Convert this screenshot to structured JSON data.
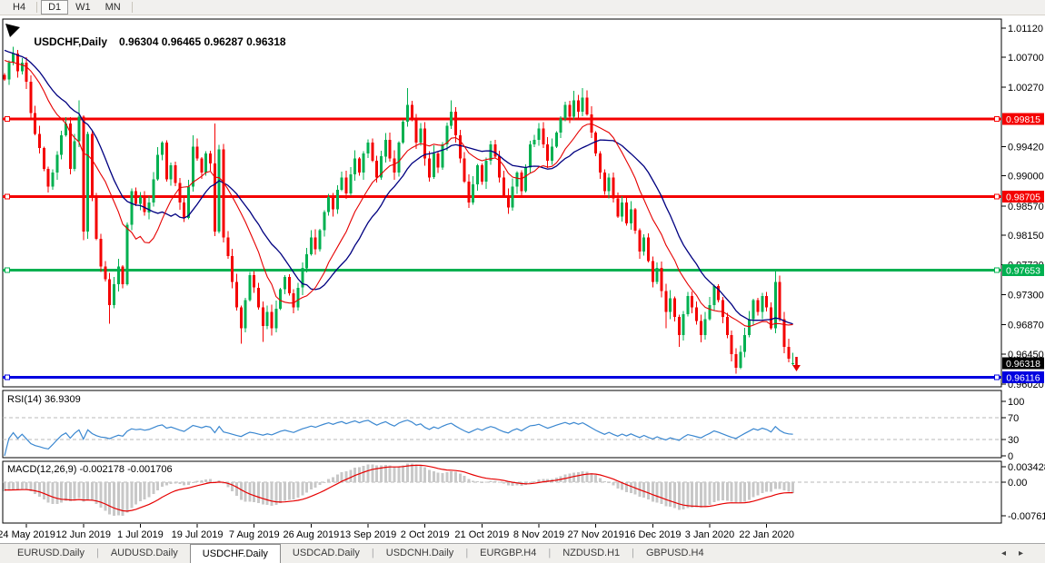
{
  "toolbar": {
    "buttons": [
      "H4",
      "D1",
      "W1",
      "MN"
    ],
    "active": "D1"
  },
  "header": {
    "symbol": "USDCHF,Daily",
    "ohlc": "0.96304 0.96465 0.96287 0.96318"
  },
  "price_axis": {
    "ticks": [
      {
        "label": "1.01120",
        "value": 1.0112
      },
      {
        "label": "1.00700",
        "value": 1.007
      },
      {
        "label": "1.00270",
        "value": 1.0027
      },
      {
        "label": "0.99420",
        "value": 0.9942
      },
      {
        "label": "0.99000",
        "value": 0.99
      },
      {
        "label": "0.98570",
        "value": 0.9857
      },
      {
        "label": "0.98150",
        "value": 0.9815
      },
      {
        "label": "0.97730",
        "value": 0.9773
      },
      {
        "label": "0.97300",
        "value": 0.973
      },
      {
        "label": "0.96870",
        "value": 0.9687
      },
      {
        "label": "0.96450",
        "value": 0.9645
      },
      {
        "label": "0.96020",
        "value": 0.9602
      }
    ]
  },
  "hlines": [
    {
      "label": "0.99815",
      "value": 0.99815,
      "color": "#f40000",
      "width": 3
    },
    {
      "label": "0.98705",
      "value": 0.98705,
      "color": "#f40000",
      "width": 3
    },
    {
      "label": "0.97653",
      "value": 0.97653,
      "color": "#00b050",
      "width": 3
    },
    {
      "label": "0.96116",
      "value": 0.96116,
      "color": "#0000e0",
      "width": 3
    }
  ],
  "price_badge": {
    "label": "0.96318",
    "value": 0.96318,
    "color": "#000000"
  },
  "rsi_panel": {
    "label": "RSI(14) 36.9309",
    "value": 36.9309,
    "line_color": "#3a87d0",
    "ticks": [
      {
        "label": "100",
        "value": 100
      },
      {
        "label": "70",
        "value": 70
      },
      {
        "label": "30",
        "value": 30
      },
      {
        "label": "0",
        "value": 0
      }
    ],
    "dashed_levels": [
      70,
      30
    ]
  },
  "macd_panel": {
    "label": "MACD(12,26,9) -0.002178 -0.001706",
    "macd_value": -0.002178,
    "signal_value": -0.001706,
    "histogram_color": "#c8c8c8",
    "signal_color": "#e60000",
    "ticks": [
      {
        "label": "0.003428",
        "y": 514
      },
      {
        "label": "0.00",
        "y": 531
      },
      {
        "label": "-0.007615",
        "y": 568
      }
    ]
  },
  "date_axis": {
    "labels": [
      "24 May 2019",
      "12 Jun 2019",
      "1 Jul 2019",
      "19 Jul 2019",
      "7 Aug 2019",
      "26 Aug 2019",
      "13 Sep 2019",
      "2 Oct 2019",
      "21 Oct 2019",
      "8 Nov 2019",
      "27 Nov 2019",
      "16 Dec 2019",
      "3 Jan 2020",
      "22 Jan 2020"
    ]
  },
  "tabs": {
    "items": [
      "EURUSD.Daily",
      "AUDUSD.Daily",
      "USDCHF.Daily",
      "USDCAD.Daily",
      "USDCNH.Daily",
      "EURGBP.H4",
      "NZDUSD.H1",
      "GBPUSD.H4"
    ],
    "active": "USDCHF.Daily",
    "scroll_left": "◂",
    "scroll_right": "▸"
  },
  "colors": {
    "bull": "#00b050",
    "bear": "#f40000",
    "ma_fast": "#e60000",
    "ma_slow": "#000080",
    "grid_dash": "#b8b8b8"
  },
  "chart_data": {
    "type": "candlestick",
    "symbol": "USDCHF",
    "timeframe": "Daily",
    "title": "USDCHF,Daily 0.96304 0.96465 0.96287 0.96318",
    "ylim": [
      0.96005,
      1.01156
    ],
    "first_open": 1.0045,
    "closes": [
      1.0038,
      1.0062,
      1.0075,
      1.005,
      1.0062,
      1.0035,
      0.999,
      0.996,
      0.994,
      0.991,
      0.9885,
      0.9905,
      0.993,
      0.9958,
      0.9975,
      0.991,
      0.995,
      0.9985,
      0.982,
      0.996,
      0.987,
      0.981,
      0.977,
      0.9752,
      0.9715,
      0.9745,
      0.977,
      0.9745,
      0.983,
      0.9878,
      0.986,
      0.987,
      0.9848,
      0.9862,
      0.9895,
      0.993,
      0.9948,
      0.9895,
      0.9915,
      0.989,
      0.9862,
      0.984,
      0.9885,
      0.9942,
      0.9925,
      0.9905,
      0.9932,
      0.9918,
      0.982,
      0.9938,
      0.9812,
      0.9785,
      0.9748,
      0.9712,
      0.9682,
      0.9722,
      0.9758,
      0.974,
      0.9712,
      0.9685,
      0.9705,
      0.9682,
      0.971,
      0.9738,
      0.9755,
      0.9732,
      0.9712,
      0.974,
      0.9768,
      0.9788,
      0.9812,
      0.9795,
      0.9822,
      0.9848,
      0.987,
      0.9852,
      0.988,
      0.9898,
      0.9875,
      0.9902,
      0.9925,
      0.9905,
      0.9932,
      0.9948,
      0.9922,
      0.9898,
      0.9928,
      0.9952,
      0.9925,
      0.9905,
      0.9948,
      0.9978,
      1.0002,
      0.9982,
      0.9948,
      0.9968,
      0.9925,
      0.9898,
      0.9932,
      0.9912,
      0.9945,
      0.9972,
      0.9992,
      0.9958,
      0.9925,
      0.9892,
      0.9862,
      0.9888,
      0.9915,
      0.9892,
      0.9922,
      0.9945,
      0.9928,
      0.9898,
      0.9872,
      0.9855,
      0.9885,
      0.9905,
      0.9878,
      0.9912,
      0.9945,
      0.9952,
      0.9968,
      0.9945,
      0.9922,
      0.9942,
      0.9962,
      0.9982,
      1.0002,
      0.9985,
      1.0008,
      0.9992,
      1.0012,
      0.9988,
      0.9962,
      0.9932,
      0.9905,
      0.9878,
      0.9898,
      0.9868,
      0.9842,
      0.9862,
      0.9832,
      0.9852,
      0.9822,
      0.9792,
      0.9812,
      0.9778,
      0.9748,
      0.9768,
      0.9735,
      0.9705,
      0.9725,
      0.9698,
      0.9672,
      0.9702,
      0.9728,
      0.9712,
      0.9692,
      0.9672,
      0.9695,
      0.9715,
      0.9742,
      0.9722,
      0.9698,
      0.9672,
      0.9645,
      0.9625,
      0.9648,
      0.9672,
      0.9695,
      0.9722,
      0.9705,
      0.9728,
      0.9712,
      0.9682,
      0.9748,
      0.9695,
      0.9655,
      0.9638,
      0.9632
    ],
    "wick_overrides": {
      "2": {
        "h": 1.0085
      },
      "14": {
        "h": 0.9984
      },
      "17": {
        "h": 1.0008
      },
      "18": {
        "l": 0.9808
      },
      "24": {
        "l": 0.9688
      },
      "43": {
        "h": 0.9958
      },
      "48": {
        "h": 0.9975
      },
      "54": {
        "l": 0.966
      },
      "59": {
        "l": 0.9662
      },
      "92": {
        "h": 1.0026
      },
      "102": {
        "h": 1.0008
      },
      "130": {
        "h": 1.0022
      },
      "132": {
        "h": 1.0026
      },
      "151": {
        "l": 0.9682
      },
      "154": {
        "l": 0.9655
      },
      "167": {
        "l": 0.9617
      },
      "176": {
        "h": 0.9766
      }
    },
    "last_bar": {
      "o": 0.96304,
      "h": 0.96465,
      "l": 0.96287,
      "c": 0.96318
    },
    "date_tick_indices": [
      5,
      18,
      31,
      44,
      57,
      70,
      83,
      96,
      109,
      122,
      135,
      148,
      161,
      174
    ],
    "dates": [
      "24 May 2019",
      "12 Jun 2019",
      "1 Jul 2019",
      "19 Jul 2019",
      "7 Aug 2019",
      "26 Aug 2019",
      "13 Sep 2019",
      "2 Oct 2019",
      "21 Oct 2019",
      "8 Nov 2019",
      "27 Nov 2019",
      "16 Dec 2019",
      "3 Jan 2020",
      "22 Jan 2020"
    ],
    "ma_fast_period": 13,
    "ma_slow_period": 21,
    "rsi_period": 14,
    "macd_params": [
      12,
      26,
      9
    ],
    "hline_values": [
      0.99815,
      0.98705,
      0.97653,
      0.96116
    ],
    "rsi_range": [
      0,
      100
    ],
    "macd_axis": [
      0.003428,
      0.0,
      -0.007615
    ]
  }
}
